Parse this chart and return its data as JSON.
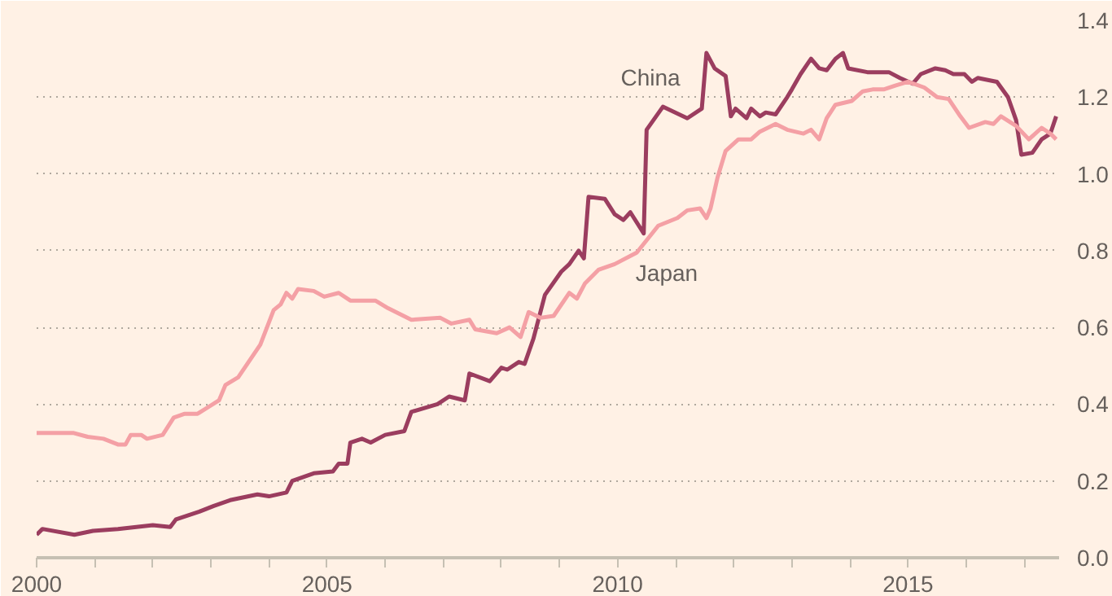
{
  "chart_data": {
    "type": "line",
    "xlim": [
      2000,
      2017.6
    ],
    "ylim": [
      0,
      1.4
    ],
    "xticks": [
      2000,
      {
        "value": 2001,
        "label": null
      },
      {
        "value": 2002,
        "label": null
      },
      {
        "value": 2003,
        "label": null
      },
      {
        "value": 2004,
        "label": null
      },
      2005,
      {
        "value": 2006,
        "label": null
      },
      {
        "value": 2007,
        "label": null
      },
      {
        "value": 2008,
        "label": null
      },
      {
        "value": 2009,
        "label": null
      },
      2010,
      {
        "value": 2011,
        "label": null
      },
      {
        "value": 2012,
        "label": null
      },
      {
        "value": 2013,
        "label": null
      },
      {
        "value": 2014,
        "label": null
      },
      2015,
      {
        "value": 2016,
        "label": null
      },
      {
        "value": 2017,
        "label": null
      }
    ],
    "yticks": [
      {
        "value": 0,
        "label": "0.0"
      },
      0.2,
      0.4,
      0.6,
      0.8,
      {
        "value": 1,
        "label": "1.0"
      },
      1.2,
      1.4
    ],
    "grid": "y",
    "line_style": "solid",
    "marker": "none",
    "series": [
      {
        "name": "China",
        "color": "#9b3d5f",
        "x": [
          2000.0,
          2000.1,
          2000.65,
          2000.97,
          2001.4,
          2002.0,
          2002.3,
          2002.4,
          2002.8,
          2003.05,
          2003.33,
          2003.8,
          2004.0,
          2004.3,
          2004.4,
          2004.77,
          2005.1,
          2005.2,
          2005.35,
          2005.4,
          2005.6,
          2005.75,
          2006.0,
          2006.33,
          2006.45,
          2006.9,
          2007.1,
          2007.37,
          2007.45,
          2007.8,
          2008.0,
          2008.1,
          2008.3,
          2008.4,
          2008.55,
          2008.75,
          2009.03,
          2009.17,
          2009.33,
          2009.42,
          2009.5,
          2009.78,
          2009.95,
          2010.1,
          2010.22,
          2010.45,
          2010.5,
          2010.78,
          2011.2,
          2011.45,
          2011.53,
          2011.67,
          2011.86,
          2011.95,
          2012.03,
          2012.22,
          2012.3,
          2012.45,
          2012.55,
          2012.72,
          2012.92,
          2013.0,
          2013.15,
          2013.33,
          2013.47,
          2013.6,
          2013.75,
          2013.88,
          2013.97,
          2014.3,
          2014.67,
          2014.86,
          2015.08,
          2015.22,
          2015.47,
          2015.64,
          2015.78,
          2015.97,
          2016.1,
          2016.2,
          2016.53,
          2016.72,
          2016.86,
          2016.95,
          2017.14,
          2017.3,
          2017.45,
          2017.55
        ],
        "values": [
          0.06,
          0.075,
          0.06,
          0.07,
          0.075,
          0.085,
          0.08,
          0.1,
          0.12,
          0.135,
          0.15,
          0.165,
          0.16,
          0.17,
          0.2,
          0.22,
          0.225,
          0.245,
          0.245,
          0.3,
          0.31,
          0.3,
          0.32,
          0.33,
          0.38,
          0.4,
          0.42,
          0.41,
          0.48,
          0.46,
          0.495,
          0.49,
          0.51,
          0.505,
          0.57,
          0.685,
          0.745,
          0.765,
          0.8,
          0.78,
          0.94,
          0.935,
          0.895,
          0.88,
          0.9,
          0.845,
          1.115,
          1.175,
          1.145,
          1.17,
          1.315,
          1.275,
          1.255,
          1.15,
          1.17,
          1.145,
          1.17,
          1.15,
          1.16,
          1.155,
          1.2,
          1.22,
          1.26,
          1.3,
          1.275,
          1.27,
          1.3,
          1.315,
          1.275,
          1.265,
          1.265,
          1.25,
          1.235,
          1.26,
          1.275,
          1.27,
          1.26,
          1.26,
          1.24,
          1.25,
          1.24,
          1.2,
          1.14,
          1.05,
          1.055,
          1.09,
          1.105,
          1.15
        ]
      },
      {
        "name": "Japan",
        "color": "#f4a0a5",
        "x": [
          2000.0,
          2000.64,
          2000.88,
          2001.15,
          2001.4,
          2001.53,
          2001.62,
          2001.8,
          2001.9,
          2002.17,
          2002.36,
          2002.55,
          2002.77,
          2003.14,
          2003.25,
          2003.47,
          2003.85,
          2004.08,
          2004.2,
          2004.3,
          2004.4,
          2004.5,
          2004.77,
          2004.95,
          2005.2,
          2005.4,
          2005.83,
          2006.05,
          2006.45,
          2006.95,
          2007.14,
          2007.45,
          2007.55,
          2007.92,
          2008.14,
          2008.33,
          2008.47,
          2008.67,
          2008.9,
          2009.17,
          2009.3,
          2009.44,
          2009.67,
          2009.95,
          2010.33,
          2010.7,
          2011.03,
          2011.2,
          2011.42,
          2011.53,
          2011.6,
          2011.72,
          2011.86,
          2012.08,
          2012.3,
          2012.45,
          2012.72,
          2012.92,
          2013.2,
          2013.33,
          2013.47,
          2013.6,
          2013.75,
          2014.03,
          2014.22,
          2014.39,
          2014.58,
          2014.78,
          2015.0,
          2015.28,
          2015.5,
          2015.7,
          2015.9,
          2016.05,
          2016.33,
          2016.47,
          2016.6,
          2016.86,
          2017.08,
          2017.3,
          2017.45,
          2017.55
        ],
        "values": [
          0.325,
          0.325,
          0.315,
          0.31,
          0.295,
          0.295,
          0.32,
          0.32,
          0.31,
          0.32,
          0.365,
          0.375,
          0.375,
          0.41,
          0.45,
          0.47,
          0.555,
          0.645,
          0.66,
          0.69,
          0.675,
          0.7,
          0.695,
          0.68,
          0.69,
          0.67,
          0.67,
          0.65,
          0.62,
          0.625,
          0.61,
          0.62,
          0.595,
          0.585,
          0.6,
          0.575,
          0.64,
          0.625,
          0.63,
          0.69,
          0.675,
          0.715,
          0.75,
          0.765,
          0.795,
          0.865,
          0.885,
          0.905,
          0.91,
          0.885,
          0.91,
          0.99,
          1.06,
          1.09,
          1.09,
          1.11,
          1.13,
          1.115,
          1.105,
          1.115,
          1.09,
          1.145,
          1.18,
          1.19,
          1.215,
          1.22,
          1.22,
          1.23,
          1.24,
          1.225,
          1.2,
          1.195,
          1.15,
          1.12,
          1.135,
          1.13,
          1.15,
          1.125,
          1.09,
          1.12,
          1.105,
          1.09
        ]
      }
    ]
  }
}
